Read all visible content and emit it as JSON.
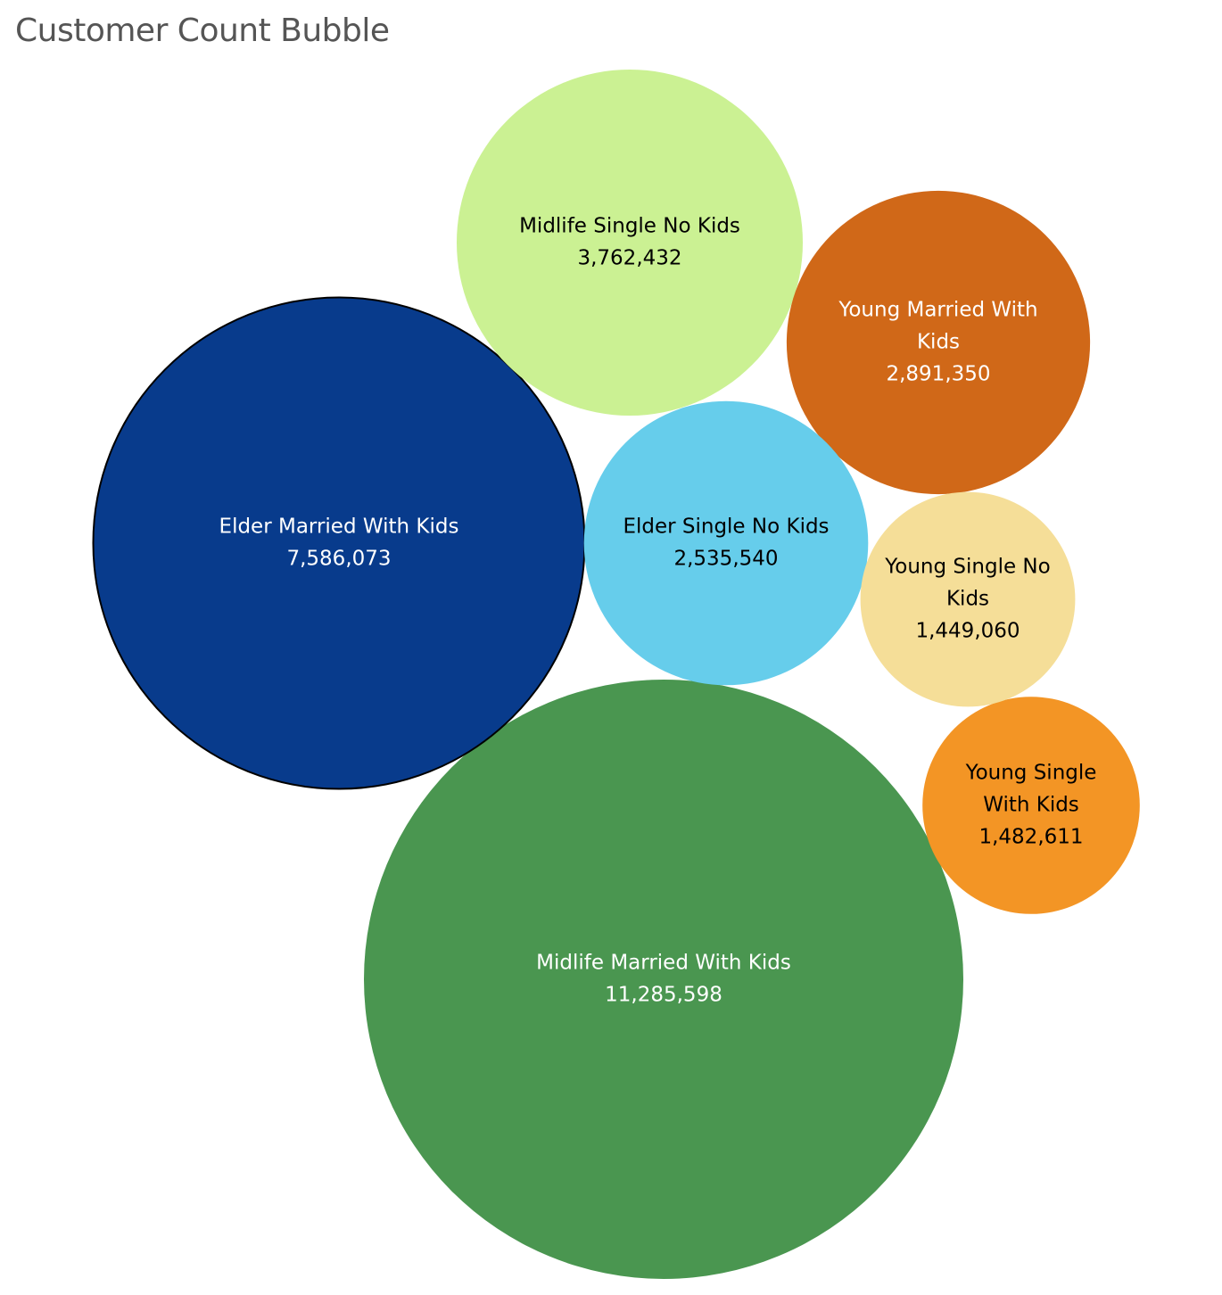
{
  "chart_data": {
    "type": "bubble",
    "title": "Customer Count Bubble",
    "series": [
      {
        "name": "Midlife Married With Kids",
        "label_lines": [
          "Midlife Married With Kids"
        ],
        "value": 11285598,
        "value_text": "11,285,598",
        "color": "#4a9650",
        "text_color": "#ffffff"
      },
      {
        "name": "Elder Married With Kids",
        "label_lines": [
          "Elder Married With Kids"
        ],
        "value": 7586073,
        "value_text": "7,586,073",
        "color": "#083b8c",
        "text_color": "#ffffff"
      },
      {
        "name": "Midlife Single No Kids",
        "label_lines": [
          "Midlife Single No Kids"
        ],
        "value": 3762432,
        "value_text": "3,762,432",
        "color": "#cbf193",
        "text_color": "#000000"
      },
      {
        "name": "Young Married With Kids",
        "label_lines": [
          "Young Married With",
          "Kids"
        ],
        "value": 2891350,
        "value_text": "2,891,350",
        "color": "#d06818",
        "text_color": "#ffffff"
      },
      {
        "name": "Elder Single No Kids",
        "label_lines": [
          "Elder Single No Kids"
        ],
        "value": 2535540,
        "value_text": "2,535,540",
        "color": "#66cdeb",
        "text_color": "#000000"
      },
      {
        "name": "Young Single With Kids",
        "label_lines": [
          "Young Single",
          "With Kids"
        ],
        "value": 1482611,
        "value_text": "1,482,611",
        "color": "#f39525",
        "text_color": "#000000"
      },
      {
        "name": "Young Single No Kids",
        "label_lines": [
          "Young Single No",
          "Kids"
        ],
        "value": 1449060,
        "value_text": "1,449,060",
        "color": "#f5de98",
        "text_color": "#000000"
      }
    ]
  }
}
